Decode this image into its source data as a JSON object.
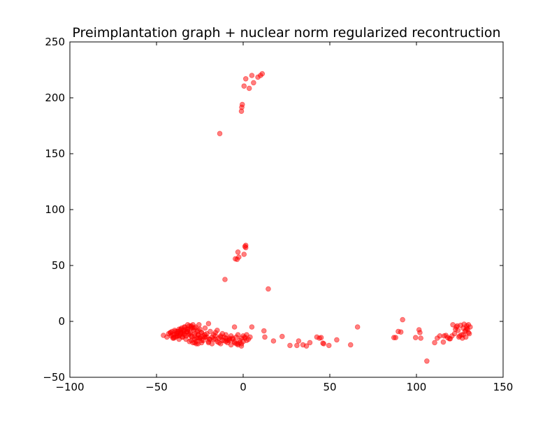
{
  "chart_data": {
    "type": "scatter",
    "title": "Preimplantation graph + nuclear norm regularized recontruction",
    "xlabel": "",
    "ylabel": "",
    "xlim": [
      -100,
      150
    ],
    "ylim": [
      -50,
      250
    ],
    "xticks": [
      -100,
      -50,
      0,
      50,
      100,
      150
    ],
    "yticks": [
      -50,
      0,
      50,
      100,
      150,
      200,
      250
    ],
    "xtick_labels": [
      "−100",
      "−50",
      "0",
      "50",
      "100",
      "150"
    ],
    "ytick_labels": [
      "−50",
      "0",
      "50",
      "100",
      "150",
      "200",
      "250"
    ],
    "grid": false,
    "marker_color": "#ff0000",
    "marker_alpha": 0.5,
    "series": [
      {
        "x": [
          -13.5,
          -0.5,
          -0.8,
          -1.0,
          0.5,
          1.5,
          3.5,
          5.0,
          6.0,
          8.5,
          10.0,
          11.0,
          -3.5,
          -3.0,
          -2.5,
          -4.5,
          0.5,
          1.5,
          1.5,
          1.0,
          -10.5,
          14.5,
          -46,
          -44,
          -43,
          -42,
          -41.5,
          -41,
          -40.5,
          -40,
          -39.5,
          -39,
          -38.5,
          -38,
          -37.5,
          -37,
          -36.5,
          -36,
          -35.5,
          -35,
          -34.5,
          -34,
          -33.5,
          -33,
          -32.5,
          -32,
          -31.5,
          -31,
          -30.5,
          -30,
          -29.5,
          -29,
          -28.5,
          -28,
          -27.5,
          -27,
          -26.5,
          -26,
          -25.5,
          -25,
          -24.5,
          -24,
          -23,
          -22,
          -21,
          -20,
          -19.5,
          -19,
          -18,
          -17,
          -16,
          -15,
          -14,
          -13,
          -12,
          -11,
          -10,
          -9,
          -8,
          -7,
          -6,
          -5,
          -4,
          -3,
          -2,
          -1,
          0,
          1,
          2,
          3,
          4,
          5,
          -42,
          -41,
          -40,
          -39,
          -38,
          -37,
          -36,
          -35,
          -34,
          -33,
          -32,
          -31,
          -30,
          -29,
          -28,
          -27,
          -26,
          -25,
          -24,
          -23,
          -22,
          -20,
          -18,
          -16,
          -14,
          -12,
          -10,
          -8,
          -6,
          -4,
          -2,
          0,
          2,
          -40,
          -38,
          -36,
          -34,
          -32,
          -30,
          -28,
          -26,
          -24,
          -22,
          -20,
          -17,
          -15,
          -13,
          -11,
          -9,
          -7,
          -5,
          -3,
          -1,
          1,
          -38,
          -36,
          -34,
          -32,
          -30,
          -28,
          -26,
          -24,
          -22,
          -21,
          -19,
          -16,
          -13,
          -10,
          -8,
          -5,
          -3,
          -1,
          -30,
          -28,
          -26,
          -31,
          -33,
          -35,
          -37,
          -29,
          -27,
          -25,
          12,
          12.5,
          17.5,
          22.5,
          27,
          31,
          32,
          34.5,
          36.5,
          38.5,
          42.5,
          44,
          45,
          46,
          46.5,
          49.5,
          54,
          62,
          66,
          87,
          88,
          89.5,
          91,
          92,
          99.5,
          101.5,
          102,
          102.5,
          106,
          110.5,
          112,
          113.5,
          115.5,
          116,
          117,
          118,
          119,
          119.5,
          121,
          122,
          123,
          124,
          125,
          125.5,
          126,
          127,
          127.5,
          128,
          128.5,
          129,
          129.5,
          130,
          130.5,
          131,
          122.5,
          124.5,
          126.5,
          128.5,
          130,
          120.5,
          123.5,
          127,
          129
        ],
        "y": [
          168,
          194,
          191.5,
          188,
          210.5,
          217,
          208.5,
          220,
          213.5,
          218.5,
          220,
          221.5,
          55.5,
          62,
          57.5,
          56,
          60,
          66,
          68,
          67,
          37.5,
          29,
          -12.5,
          -14,
          -11,
          -10,
          -13,
          -9,
          -15,
          -12,
          -8,
          -14,
          -11,
          -13,
          -9,
          -7,
          -12,
          -10,
          -6,
          -14,
          -8,
          -11,
          -5,
          -13,
          -9,
          -7,
          -12,
          -4,
          -10,
          -6,
          -14,
          -3,
          -8,
          -11,
          -5,
          -15,
          -9,
          -12,
          -3,
          -7,
          -14,
          -10,
          -13,
          -6,
          -11,
          -2,
          -16,
          -9,
          -14,
          -12,
          -10,
          -8,
          -15,
          -13,
          -11,
          -14,
          -12,
          -17,
          -15,
          -13,
          -16,
          -5,
          -14,
          -12,
          -17,
          -15,
          -13,
          -14,
          -12,
          -16,
          -14,
          -5,
          -10,
          -12,
          -14,
          -9,
          -11,
          -13,
          -8,
          -10,
          -12,
          -7,
          -9,
          -11,
          -13,
          -6,
          -16,
          -18,
          -12,
          -15,
          -19,
          -17,
          -14,
          -18,
          -20,
          -16,
          -19,
          -17,
          -18,
          -16,
          -15,
          -20,
          -19,
          -18,
          -17,
          -15,
          -13,
          -11,
          -9,
          -7,
          -5,
          -13,
          -15,
          -17,
          -14,
          -19,
          -16,
          -18,
          -20,
          -17,
          -19,
          -21,
          -18,
          -20,
          -22,
          -15,
          -9,
          -7,
          -5,
          -3,
          -4,
          -6,
          -8,
          -10,
          -12,
          -14,
          -16,
          -13,
          -14,
          -15,
          -17,
          -19,
          -21,
          -20,
          -17,
          -19,
          -20,
          -18,
          -16,
          -14,
          -16,
          -19,
          -20,
          -15,
          -8.5,
          -14,
          -17.5,
          -13.5,
          -21.5,
          -21.5,
          -17.5,
          -21,
          -22,
          -19,
          -14,
          -15,
          -14.5,
          -19.5,
          -20,
          -21.5,
          -16.5,
          -21,
          -5,
          -14.5,
          -14.5,
          -9,
          -9.5,
          1.5,
          -14.5,
          -7.5,
          -10,
          -15,
          -35.5,
          -19,
          -15,
          -13,
          -18.5,
          -13,
          -12.5,
          -14.5,
          -15.5,
          -15.5,
          -3,
          -11,
          -5,
          -8,
          -13,
          -3.5,
          -12,
          -6,
          -2.5,
          -9,
          -14,
          -4,
          -7,
          -3,
          -11,
          -5,
          -7,
          -14,
          -15,
          -8,
          -10,
          -13,
          -4,
          -12,
          -6
        ]
      }
    ]
  }
}
